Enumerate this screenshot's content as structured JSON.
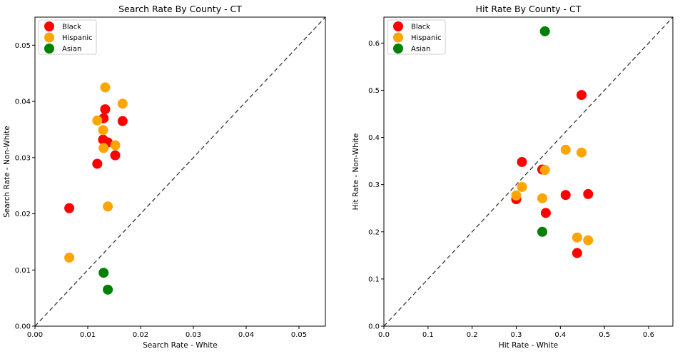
{
  "chart_data": [
    {
      "type": "scatter",
      "title": "Search Rate By County - CT",
      "xlabel": "Search Rate - White",
      "ylabel": "Search Rate - Non-White",
      "xlim": [
        0,
        0.055
      ],
      "ylim": [
        0,
        0.055
      ],
      "xticks": [
        0.0,
        0.01,
        0.02,
        0.03,
        0.04,
        0.05
      ],
      "yticks": [
        0.0,
        0.01,
        0.02,
        0.03,
        0.04,
        0.05
      ],
      "xtick_labels": [
        "0.00",
        "0.01",
        "0.02",
        "0.03",
        "0.04",
        "0.05"
      ],
      "ytick_labels": [
        "0.00",
        "0.01",
        "0.02",
        "0.03",
        "0.04",
        "0.05"
      ],
      "diagonal": true,
      "grid": false,
      "legend_position": "top-left",
      "series": [
        {
          "name": "Black",
          "color": "#ff0000",
          "points": [
            {
              "x": 0.0065,
              "y": 0.021
            },
            {
              "x": 0.0118,
              "y": 0.0289
            },
            {
              "x": 0.013,
              "y": 0.037
            },
            {
              "x": 0.0133,
              "y": 0.0386
            },
            {
              "x": 0.0129,
              "y": 0.0332
            },
            {
              "x": 0.0138,
              "y": 0.0327
            },
            {
              "x": 0.0152,
              "y": 0.0304
            },
            {
              "x": 0.0166,
              "y": 0.0365
            }
          ]
        },
        {
          "name": "Hispanic",
          "color": "#ffa500",
          "points": [
            {
              "x": 0.0065,
              "y": 0.0122
            },
            {
              "x": 0.0118,
              "y": 0.0366
            },
            {
              "x": 0.0129,
              "y": 0.0349
            },
            {
              "x": 0.013,
              "y": 0.0317
            },
            {
              "x": 0.0133,
              "y": 0.0425
            },
            {
              "x": 0.0138,
              "y": 0.0213
            },
            {
              "x": 0.0152,
              "y": 0.0322
            },
            {
              "x": 0.0166,
              "y": 0.0396
            }
          ]
        },
        {
          "name": "Asian",
          "color": "#008000",
          "points": [
            {
              "x": 0.013,
              "y": 0.0095
            },
            {
              "x": 0.0138,
              "y": 0.0065
            }
          ]
        }
      ]
    },
    {
      "type": "scatter",
      "title": "Hit Rate By County - CT",
      "xlabel": "Hit Rate - White",
      "ylabel": "Hit Rate - Non-White",
      "xlim": [
        0,
        0.655
      ],
      "ylim": [
        0,
        0.655
      ],
      "xticks": [
        0.0,
        0.1,
        0.2,
        0.3,
        0.4,
        0.5,
        0.6
      ],
      "yticks": [
        0.0,
        0.1,
        0.2,
        0.3,
        0.4,
        0.5,
        0.6
      ],
      "xtick_labels": [
        "0.0",
        "0.1",
        "0.2",
        "0.3",
        "0.4",
        "0.5",
        "0.6"
      ],
      "ytick_labels": [
        "0.0",
        "0.1",
        "0.2",
        "0.3",
        "0.4",
        "0.5",
        "0.6"
      ],
      "diagonal": true,
      "grid": false,
      "legend_position": "top-left",
      "series": [
        {
          "name": "Black",
          "color": "#ff0000",
          "points": [
            {
              "x": 0.3,
              "y": 0.269
            },
            {
              "x": 0.313,
              "y": 0.348
            },
            {
              "x": 0.359,
              "y": 0.332
            },
            {
              "x": 0.367,
              "y": 0.24
            },
            {
              "x": 0.412,
              "y": 0.278
            },
            {
              "x": 0.438,
              "y": 0.155
            },
            {
              "x": 0.448,
              "y": 0.49
            },
            {
              "x": 0.463,
              "y": 0.28
            }
          ]
        },
        {
          "name": "Hispanic",
          "color": "#ffa500",
          "points": [
            {
              "x": 0.3,
              "y": 0.277
            },
            {
              "x": 0.313,
              "y": 0.295
            },
            {
              "x": 0.359,
              "y": 0.271
            },
            {
              "x": 0.365,
              "y": 0.331
            },
            {
              "x": 0.412,
              "y": 0.374
            },
            {
              "x": 0.438,
              "y": 0.188
            },
            {
              "x": 0.448,
              "y": 0.368
            },
            {
              "x": 0.463,
              "y": 0.182
            }
          ]
        },
        {
          "name": "Asian",
          "color": "#008000",
          "points": [
            {
              "x": 0.359,
              "y": 0.2
            },
            {
              "x": 0.365,
              "y": 0.625
            }
          ]
        }
      ]
    }
  ]
}
